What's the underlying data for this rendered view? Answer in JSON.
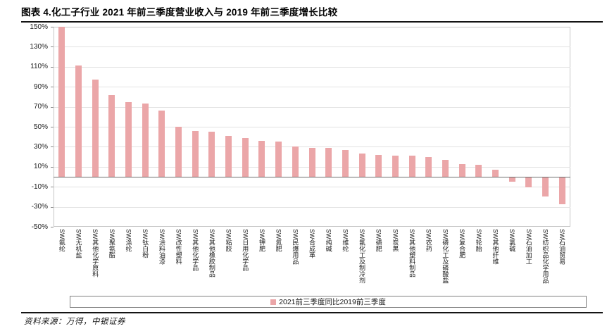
{
  "page": {
    "title": "图表 4.化工子行业 2021 年前三季度营业收入与 2019 年前三季度增长比较",
    "source_note": "资料来源：万得，中银证券"
  },
  "chart_data": {
    "type": "bar",
    "title": "化工子行业 2021 年前三季度营业收入与 2019 年前三季度增长比较",
    "categories": [
      "SW氨纶",
      "SW无机盐",
      "SW其他化学原料",
      "SW聚氨酯",
      "SW涤纶",
      "SW钛白粉",
      "SW涂料油漆",
      "SW改性塑料",
      "SW其他化学品",
      "SW其他橡胶制品",
      "SW粘胶",
      "SW日用化学品",
      "SW钾肥",
      "SW氮肥",
      "SW民爆用品",
      "SW合成革",
      "SW纯碱",
      "SW维纶",
      "SW氟化工及制冷剂",
      "SW磷肥",
      "SW炭黑",
      "SW其他塑料制品",
      "SW农药",
      "SW磷化工及磷酸盐",
      "SW复合肥",
      "SW轮胎",
      "SW其他纤维",
      "SW氯碱",
      "SW石油加工",
      "SW纺织品化学用品",
      "SW石油贸易"
    ],
    "values": [
      152,
      111,
      97,
      82,
      75,
      73,
      66,
      50,
      46,
      45,
      41,
      39,
      36,
      35,
      30,
      29,
      29,
      27,
      23,
      22,
      21,
      21,
      20,
      17,
      13,
      12,
      7,
      -4,
      -10,
      -19,
      -27
    ],
    "value_unit": "%",
    "ylim": [
      -50,
      150
    ],
    "yticks": [
      150,
      130,
      110,
      90,
      70,
      50,
      30,
      10,
      -10,
      -30,
      -50
    ],
    "ytick_labels": [
      "150%",
      "130%",
      "110%",
      "90%",
      "70%",
      "50%",
      "30%",
      "10%",
      "-10%",
      "-30%",
      "-50%"
    ],
    "xlabel": "",
    "ylabel": "",
    "grid": true,
    "legend": {
      "label": "2021前三季度同比2019前三季度",
      "position": "bottom",
      "color": "#ebา6a8"
    },
    "bar_color": "#eba6a8",
    "zero_line_color": "#6e6e6e",
    "gridline_color": "#e2e2e2",
    "axis_color": "#c6c6c6",
    "title_color": "#000000"
  }
}
